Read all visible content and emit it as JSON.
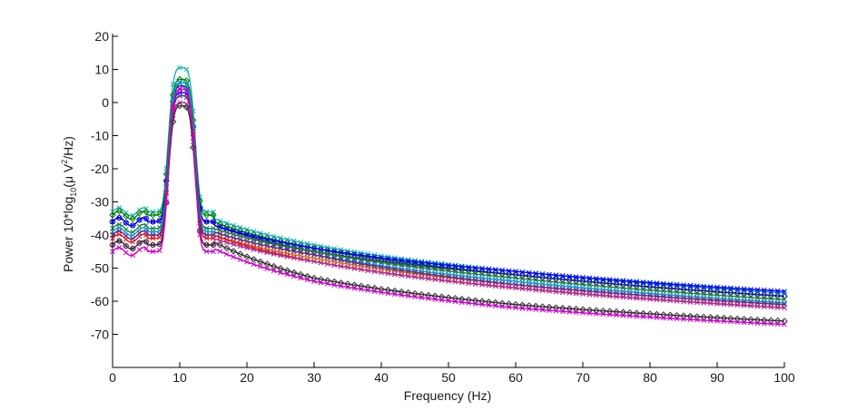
{
  "chart_data": {
    "type": "line",
    "title": "",
    "xlabel": "Frequency (Hz)",
    "ylabel": {
      "prefix": "Power 10*log",
      "sub": "10",
      "mid": "(μ V",
      "sup": "2",
      "suffix": "/Hz)"
    },
    "xlim": [
      0,
      100
    ],
    "ylim": [
      -80,
      22
    ],
    "xticks": [
      "0",
      "10",
      "20",
      "30",
      "40",
      "50",
      "60",
      "70",
      "80",
      "90",
      "100"
    ],
    "yticks": [
      "20",
      "10",
      "0",
      "-10",
      "-20",
      "-30",
      "-40",
      "-50",
      "-60",
      "-70"
    ],
    "grid": false,
    "legend": "none",
    "series": [
      {
        "color": "#1ab3b3",
        "marker": "x",
        "peak": 10.5,
        "low": -33,
        "p15": -35,
        "p30": -43,
        "p60": -51,
        "p100": -57.5
      },
      {
        "color": "#008000",
        "marker": "diamond",
        "peak": 7,
        "low": -34,
        "p15": -36,
        "p30": -44,
        "p60": -52,
        "p100": -58.5
      },
      {
        "color": "#1a1aa6",
        "marker": "diamond",
        "peak": 5,
        "low": -36,
        "p15": -37,
        "p30": -45,
        "p60": -52,
        "p100": -58.5
      },
      {
        "color": "#0000ff",
        "marker": "x",
        "peak": 3,
        "low": -36,
        "p15": -37,
        "p30": -44,
        "p60": -51,
        "p100": -57
      },
      {
        "color": "#2a7a2a",
        "marker": "x",
        "peak": 6,
        "low": -38,
        "p15": -38,
        "p30": -45,
        "p60": -53,
        "p100": -59.5
      },
      {
        "color": "#e07a00",
        "marker": "x",
        "peak": 4,
        "low": -40,
        "p15": -40,
        "p30": -47,
        "p60": -55,
        "p100": -61
      },
      {
        "color": "#00a0e0",
        "marker": "x",
        "peak": 6,
        "low": -39,
        "p15": -39,
        "p30": -46,
        "p60": -54,
        "p100": -60.5
      },
      {
        "color": "#e01a1a",
        "marker": "x",
        "peak": 4,
        "low": -41,
        "p15": -40,
        "p30": -48,
        "p60": -56,
        "p100": -62
      },
      {
        "color": "#6a2a8a",
        "marker": "x",
        "peak": 2,
        "low": -40,
        "p15": -39,
        "p30": -46,
        "p60": -55,
        "p100": -61
      },
      {
        "color": "#b02a9a",
        "marker": "x",
        "peak": 0,
        "low": -43,
        "p15": -41,
        "p30": -48,
        "p60": -56,
        "p100": -62
      },
      {
        "color": "#333333",
        "marker": "diamond",
        "peak": -1,
        "low": -43,
        "p15": -42,
        "p30": -53,
        "p60": -61,
        "p100": -66
      },
      {
        "color": "#cc00cc",
        "marker": "x",
        "peak": 4,
        "low": -45,
        "p15": -44,
        "p30": -54,
        "p60": -62,
        "p100": -67
      }
    ]
  }
}
